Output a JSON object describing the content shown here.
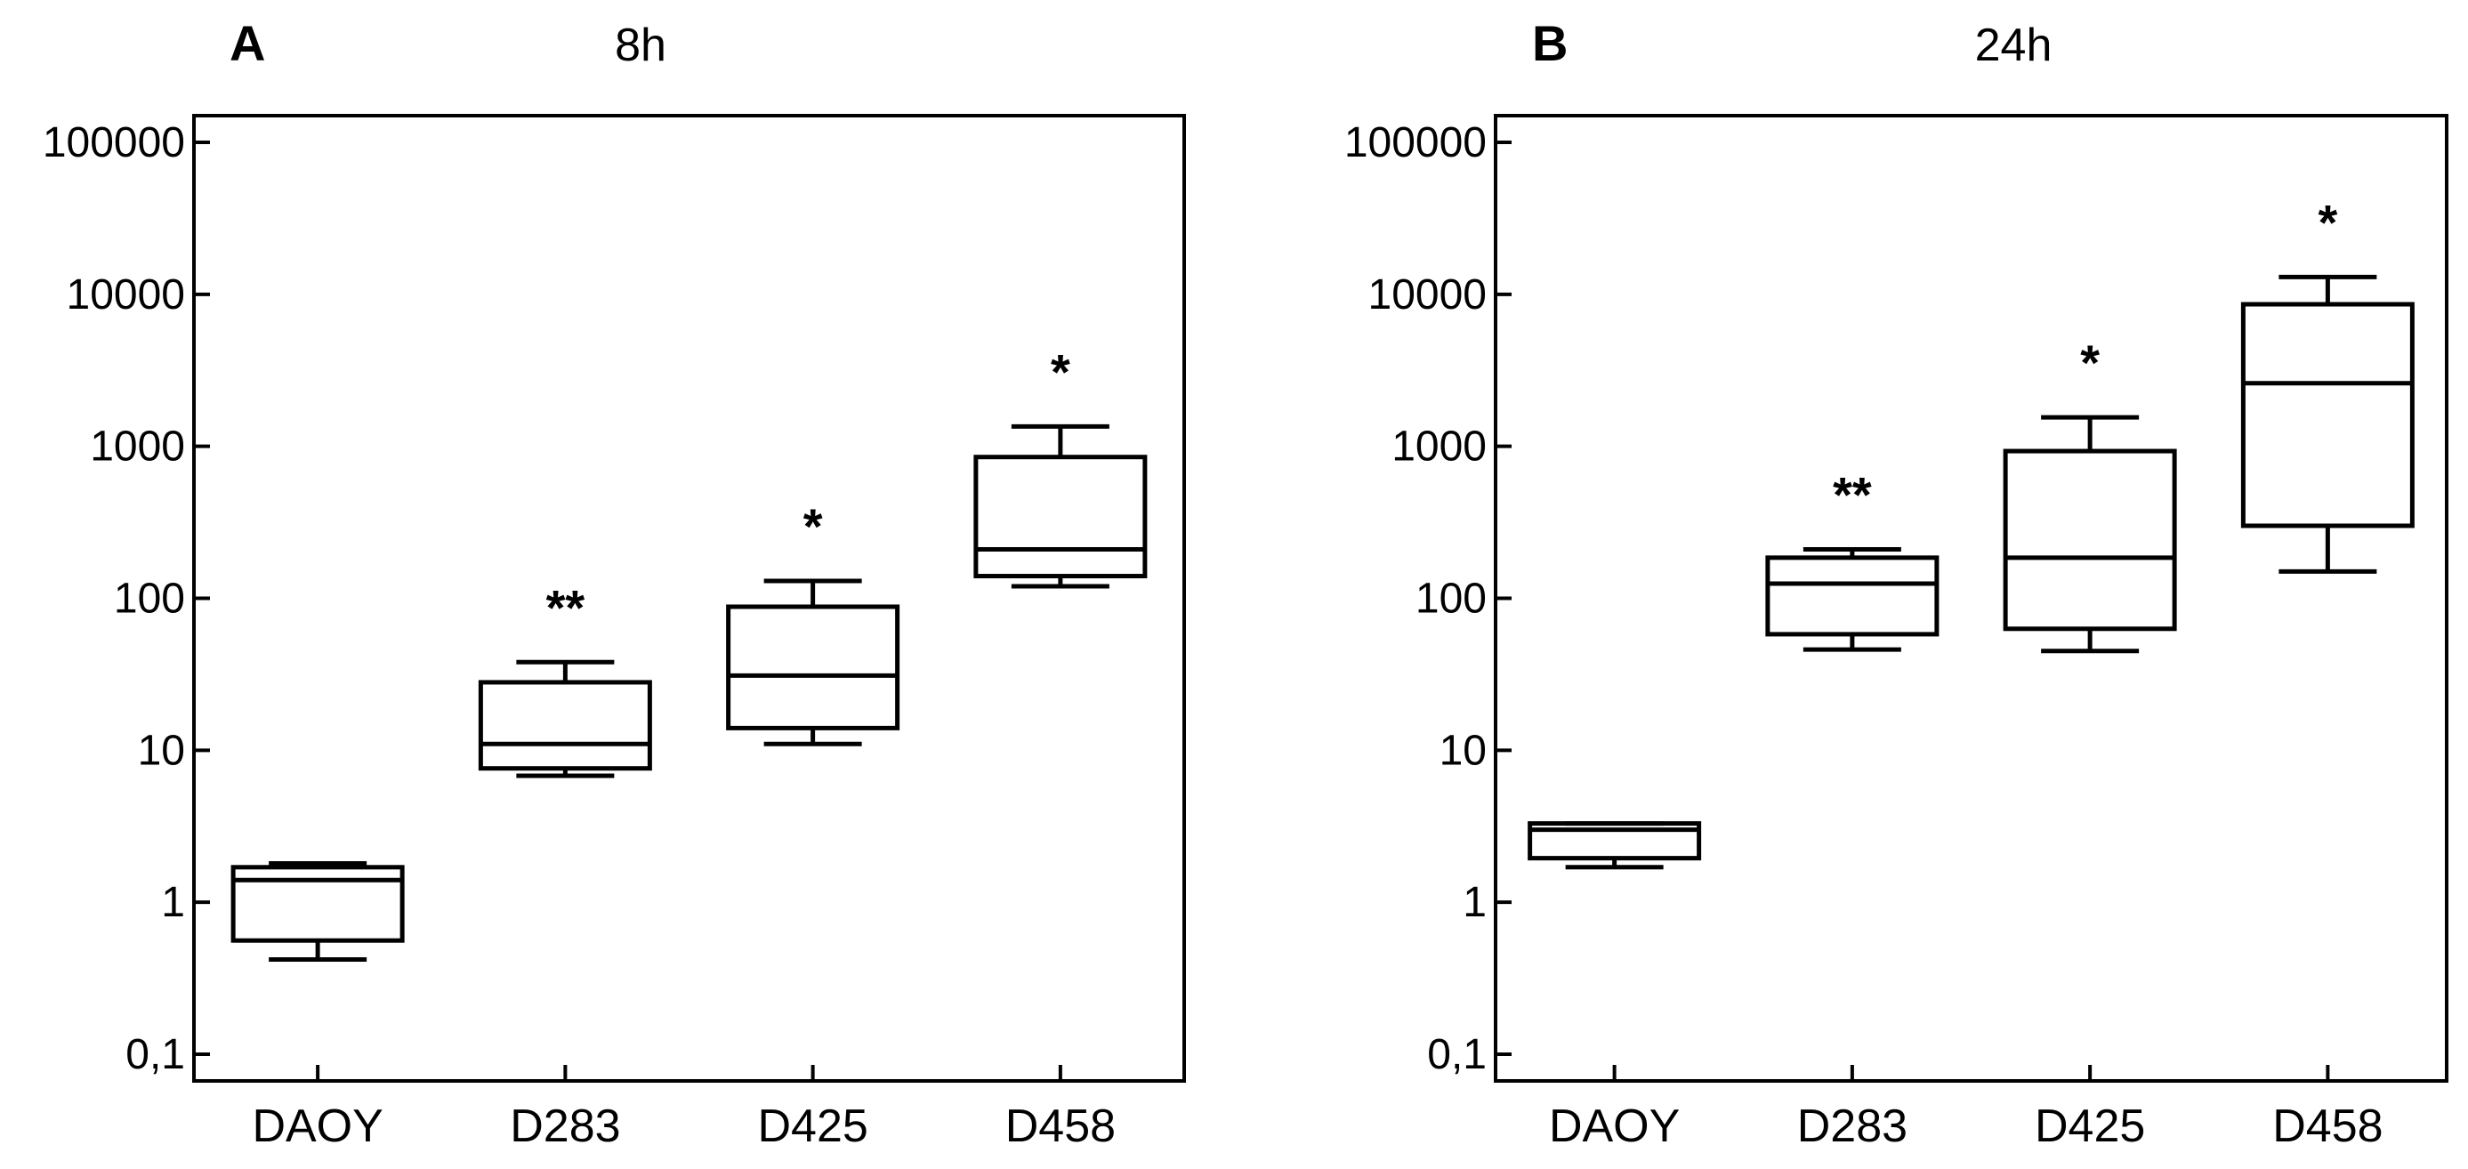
{
  "chart_data": [
    {
      "type": "boxplot",
      "panel": "A",
      "title": "8h",
      "xlabel": "",
      "ylabel": "",
      "yscale": "log",
      "ylim": [
        0.1,
        100000
      ],
      "ytick_values": [
        0.1,
        1,
        10,
        100,
        1000,
        10000,
        100000
      ],
      "ytick_labels": [
        "0,1",
        "1",
        "10",
        "100",
        "1000",
        "10000",
        "100000"
      ],
      "categories": [
        "DAOY",
        "D283",
        "D425",
        "D458"
      ],
      "boxes": [
        {
          "category": "DAOY",
          "whisker_low": 0.42,
          "q1": 0.56,
          "median": 1.4,
          "q3": 1.7,
          "whisker_high": 1.8,
          "significance": ""
        },
        {
          "category": "D283",
          "whisker_low": 6.8,
          "q1": 7.6,
          "median": 11,
          "q3": 28,
          "whisker_high": 38,
          "significance": "**"
        },
        {
          "category": "D425",
          "whisker_low": 11,
          "q1": 14,
          "median": 31,
          "q3": 88,
          "whisker_high": 130,
          "significance": "*"
        },
        {
          "category": "D458",
          "whisker_low": 120,
          "q1": 140,
          "median": 210,
          "q3": 850,
          "whisker_high": 1350,
          "significance": "*"
        }
      ]
    },
    {
      "type": "boxplot",
      "panel": "B",
      "title": "24h",
      "xlabel": "",
      "ylabel": "",
      "yscale": "log",
      "ylim": [
        0.1,
        100000
      ],
      "ytick_values": [
        0.1,
        1,
        10,
        100,
        1000,
        10000,
        100000
      ],
      "ytick_labels": [
        "0,1",
        "1",
        "10",
        "100",
        "1000",
        "10000",
        "100000"
      ],
      "categories": [
        "DAOY",
        "D283",
        "D425",
        "D458"
      ],
      "boxes": [
        {
          "category": "DAOY",
          "whisker_low": 1.7,
          "q1": 1.95,
          "median": 3.0,
          "q3": 3.3,
          "whisker_high": 3.3,
          "significance": ""
        },
        {
          "category": "D283",
          "whisker_low": 46,
          "q1": 58,
          "median": 125,
          "q3": 185,
          "whisker_high": 210,
          "significance": "**"
        },
        {
          "category": "D425",
          "whisker_low": 45,
          "q1": 63,
          "median": 185,
          "q3": 930,
          "whisker_high": 1550,
          "significance": "*"
        },
        {
          "category": "D458",
          "whisker_low": 150,
          "q1": 300,
          "median": 2600,
          "q3": 8600,
          "whisker_high": 13000,
          "significance": "*"
        }
      ]
    }
  ]
}
